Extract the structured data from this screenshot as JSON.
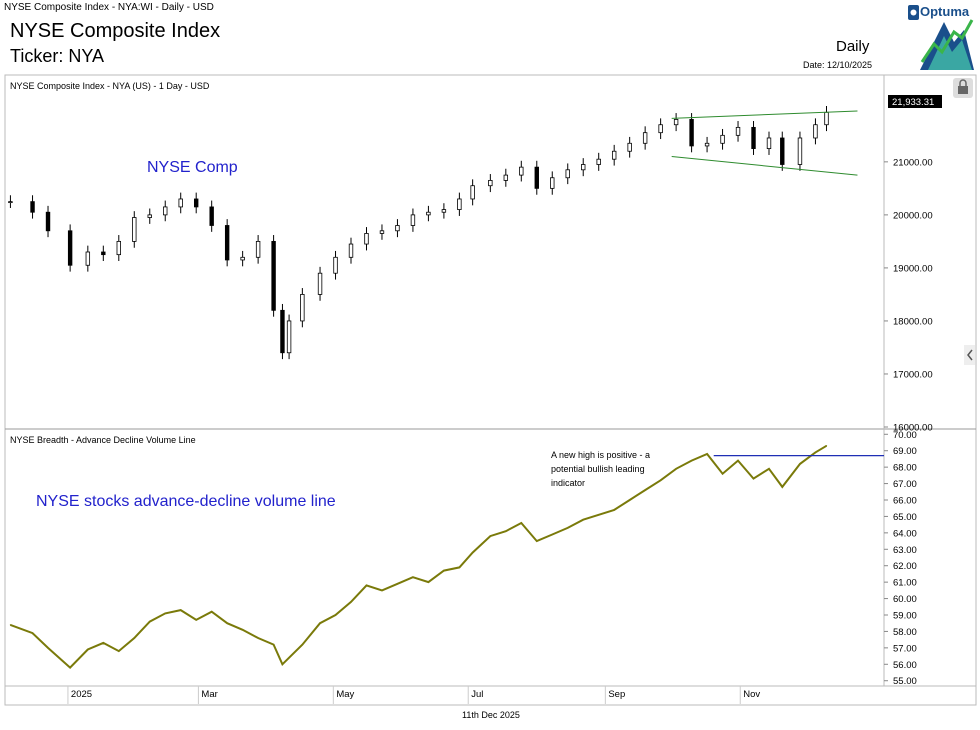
{
  "header": {
    "window_title": "NYSE Composite Index - NYA:WI - Daily - USD",
    "title": "NYSE Composite Index",
    "ticker": "Ticker: NYA",
    "period": "Daily",
    "date": "Date: 12/10/2025",
    "logo_text": "Optuma"
  },
  "footer": {
    "date": "11th Dec 2025"
  },
  "colors": {
    "price": "#000000",
    "channel": "#2e8b2e",
    "adline": "#7a7a0a",
    "high_line": "#1f2fb5",
    "annotation_blue": "#2222cc"
  },
  "icons": {
    "lock": "lock-icon",
    "collapse": "chevron-left-icon"
  },
  "chart_data": [
    {
      "type": "candlestick",
      "panel_title": "NYSE Composite Index - NYA (US) - 1 Day - USD",
      "annotation": "NYSE Comp",
      "last_value_label": "21,933.31",
      "y_ticks": [
        "21000.00",
        "20000.00",
        "19000.00",
        "18000.00",
        "17000.00",
        "16000.00"
      ],
      "ylim": [
        16000,
        22600
      ],
      "x_ticks": [
        "2025",
        "Mar",
        "May",
        "Jul",
        "Sep",
        "Nov"
      ],
      "series": [
        {
          "x": [
            "2024-12-06",
            "2024-12-16",
            "2024-12-23",
            "2025-01-02",
            "2025-01-10",
            "2025-01-17",
            "2025-01-24",
            "2025-01-31",
            "2025-02-07",
            "2025-02-14",
            "2025-02-21",
            "2025-02-28",
            "2025-03-07",
            "2025-03-14",
            "2025-03-21",
            "2025-03-28",
            "2025-04-04",
            "2025-04-08",
            "2025-04-11",
            "2025-04-17",
            "2025-04-25",
            "2025-05-02",
            "2025-05-09",
            "2025-05-16",
            "2025-05-23",
            "2025-05-30",
            "2025-06-06",
            "2025-06-13",
            "2025-06-20",
            "2025-06-27",
            "2025-07-03",
            "2025-07-11",
            "2025-07-18",
            "2025-07-25",
            "2025-08-01",
            "2025-08-08",
            "2025-08-15",
            "2025-08-22",
            "2025-08-29",
            "2025-09-05",
            "2025-09-12",
            "2025-09-19",
            "2025-09-26",
            "2025-10-03",
            "2025-10-10",
            "2025-10-17",
            "2025-10-24",
            "2025-10-31",
            "2025-11-07",
            "2025-11-14",
            "2025-11-20",
            "2025-11-28",
            "2025-12-05",
            "2025-12-10"
          ],
          "close": [
            20250,
            20050,
            19700,
            19050,
            19300,
            19250,
            19500,
            19950,
            20000,
            20150,
            20300,
            20150,
            19800,
            19150,
            19200,
            19500,
            18200,
            17400,
            18000,
            18500,
            18900,
            19200,
            19450,
            19650,
            19700,
            19800,
            20000,
            20050,
            20100,
            20300,
            20550,
            20650,
            20750,
            20900,
            20500,
            20700,
            20850,
            20950,
            21050,
            21200,
            21350,
            21550,
            21700,
            21800,
            21300,
            21350,
            21500,
            21650,
            21250,
            21450,
            20950,
            21450,
            21700,
            21933.31
          ]
        }
      ],
      "channel": {
        "upper": [
          [
            "2025-10-01",
            21820
          ],
          [
            "2025-12-24",
            21960
          ]
        ],
        "lower": [
          [
            "2025-10-01",
            21100
          ],
          [
            "2025-12-24",
            20750
          ]
        ]
      }
    },
    {
      "type": "line",
      "panel_title": "NYSE Breadth - Advance Decline Volume Line",
      "annotation": "NYSE stocks advance-decline volume line",
      "note": [
        "A new high is positive - a",
        "potential bullish leading",
        "indicator"
      ],
      "y_ticks": [
        "70.00",
        "69.00",
        "68.00",
        "67.00",
        "66.00",
        "65.00",
        "64.00",
        "63.00",
        "62.00",
        "61.00",
        "60.00",
        "59.00",
        "58.00",
        "57.00",
        "56.00",
        "55.00"
      ],
      "ylim": [
        54.8,
        70.2
      ],
      "series": [
        {
          "name": "",
          "x": [
            "2024-12-06",
            "2024-12-16",
            "2024-12-23",
            "2025-01-02",
            "2025-01-10",
            "2025-01-17",
            "2025-01-24",
            "2025-01-31",
            "2025-02-07",
            "2025-02-14",
            "2025-02-21",
            "2025-02-28",
            "2025-03-07",
            "2025-03-14",
            "2025-03-21",
            "2025-03-28",
            "2025-04-04",
            "2025-04-08",
            "2025-04-11",
            "2025-04-17",
            "2025-04-25",
            "2025-05-02",
            "2025-05-09",
            "2025-05-16",
            "2025-05-23",
            "2025-05-30",
            "2025-06-06",
            "2025-06-13",
            "2025-06-20",
            "2025-06-27",
            "2025-07-03",
            "2025-07-11",
            "2025-07-18",
            "2025-07-25",
            "2025-08-01",
            "2025-08-08",
            "2025-08-15",
            "2025-08-22",
            "2025-08-29",
            "2025-09-05",
            "2025-09-12",
            "2025-09-19",
            "2025-09-26",
            "2025-10-03",
            "2025-10-10",
            "2025-10-17",
            "2025-10-24",
            "2025-10-31",
            "2025-11-07",
            "2025-11-14",
            "2025-11-20",
            "2025-11-28",
            "2025-12-05",
            "2025-12-10"
          ],
          "values": [
            58.4,
            57.9,
            57.0,
            55.8,
            56.9,
            57.3,
            56.8,
            57.6,
            58.6,
            59.1,
            59.3,
            58.7,
            59.2,
            58.5,
            58.1,
            57.6,
            57.2,
            56.0,
            56.4,
            57.2,
            58.5,
            59.0,
            59.8,
            60.8,
            60.5,
            60.9,
            61.3,
            61.0,
            61.7,
            61.9,
            62.8,
            63.8,
            64.1,
            64.6,
            63.5,
            63.9,
            64.3,
            64.8,
            65.1,
            65.4,
            66.0,
            66.6,
            67.2,
            67.9,
            68.4,
            68.8,
            67.6,
            68.4,
            67.3,
            67.9,
            66.8,
            68.2,
            68.9,
            69.3
          ]
        }
      ],
      "high_line_value": 68.7
    }
  ]
}
